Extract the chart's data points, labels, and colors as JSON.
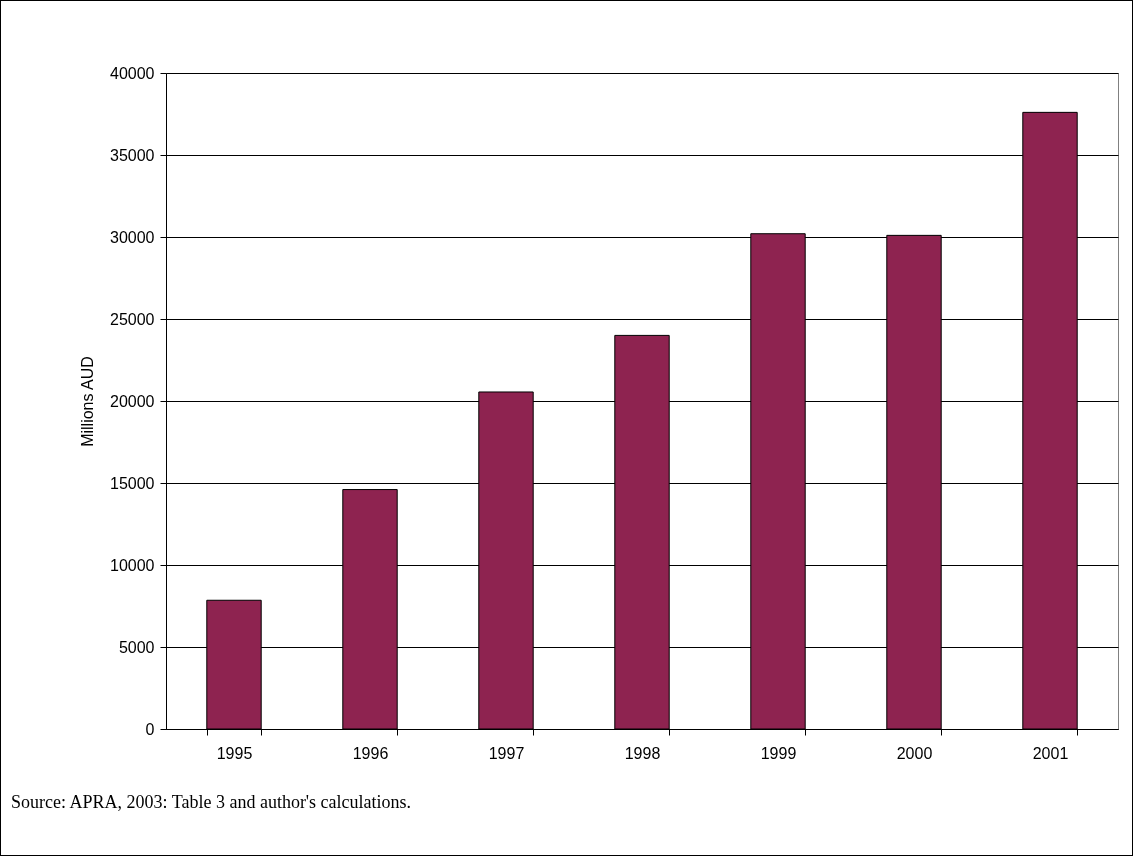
{
  "chart_data": {
    "type": "bar",
    "ylabel": "Millions AUD",
    "categories": [
      "1995",
      "1996",
      "1997",
      "1998",
      "1999",
      "2000",
      "2001"
    ],
    "values": [
      7850,
      14600,
      20550,
      24000,
      30200,
      30100,
      37600
    ],
    "color": "#8e2350",
    "ylim": [
      0,
      40000
    ],
    "yticks": [
      0,
      5000,
      10000,
      15000,
      20000,
      25000,
      30000,
      35000,
      40000
    ],
    "grid": "y",
    "annotations": [
      "Source: APRA, 2003: Table 3 and author's calculations."
    ]
  }
}
